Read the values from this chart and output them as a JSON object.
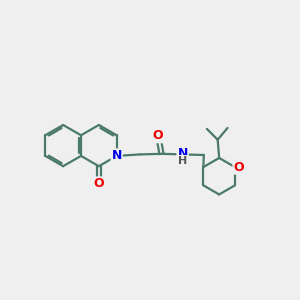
{
  "bg_color": "#efefef",
  "bond_color": "#4a7a6a",
  "bond_width": 1.6,
  "atom_N": "#0000ee",
  "atom_O": "#ee0000",
  "atom_H": "#555555",
  "fig_width": 3.0,
  "fig_height": 3.0,
  "dpi": 100,
  "xlim": [
    0,
    10
  ],
  "ylim": [
    0,
    10
  ],
  "ring_R": 0.7,
  "bcx": 2.05,
  "bcy": 5.15,
  "R2": 0.62
}
